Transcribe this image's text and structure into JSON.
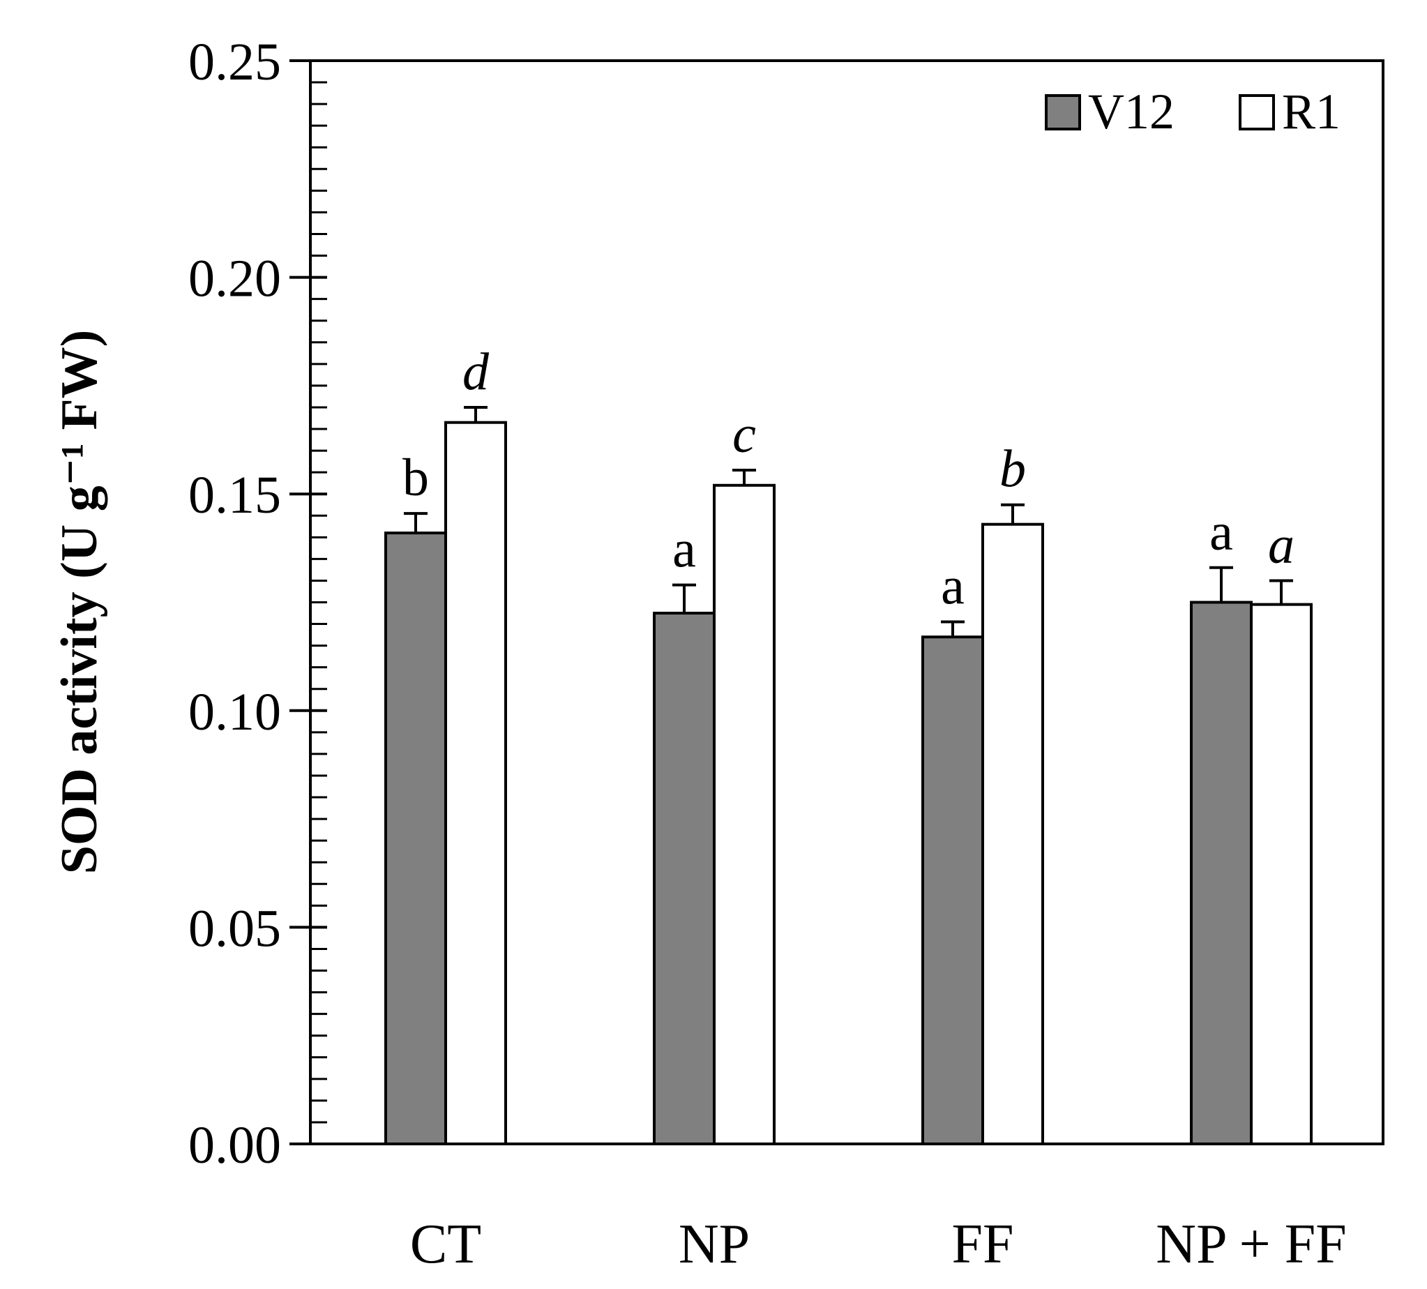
{
  "chart_data": {
    "type": "bar",
    "title": "",
    "xlabel": "",
    "ylabel": "SOD activity (U g⁻¹ FW)",
    "ylim": [
      0,
      0.25
    ],
    "major_ticks": [
      "0.00",
      "0.05",
      "0.10",
      "0.15",
      "0.20",
      "0.25"
    ],
    "minor_tick_step": 0.005,
    "grid": false,
    "legend_position": "top-right",
    "categories": [
      "CT",
      "NP",
      "FF",
      "NP + FF"
    ],
    "series": [
      {
        "name": "V12",
        "color": "#808080",
        "values": [
          0.141,
          0.1225,
          0.117,
          0.125
        ],
        "errors": [
          0.0045,
          0.0065,
          0.0035,
          0.008
        ],
        "letters": [
          "b",
          "a",
          "a",
          "a"
        ],
        "letters_italic": false
      },
      {
        "name": "R1",
        "color": "#ffffff",
        "values": [
          0.1665,
          0.152,
          0.143,
          0.1245
        ],
        "errors": [
          0.0035,
          0.0035,
          0.0045,
          0.0055
        ],
        "letters": [
          "d",
          "c",
          "b",
          "a"
        ],
        "letters_italic": true
      }
    ]
  }
}
